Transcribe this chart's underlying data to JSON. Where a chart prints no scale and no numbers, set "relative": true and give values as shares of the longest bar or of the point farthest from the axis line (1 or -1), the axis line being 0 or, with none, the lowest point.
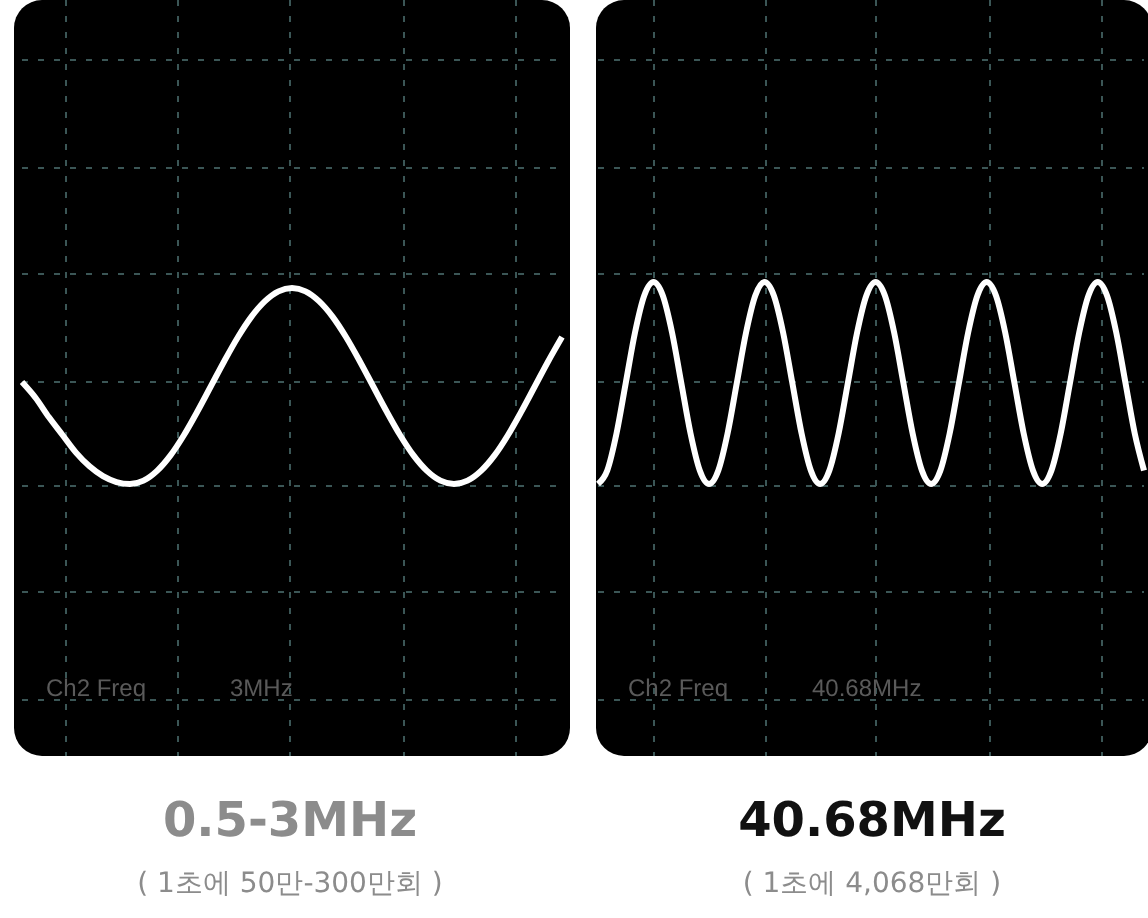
{
  "chart_data": [
    {
      "type": "line",
      "relative": true,
      "grid": true,
      "color": "#ffffff",
      "categories": [
        null,
        null,
        null,
        null,
        null,
        null,
        null,
        null,
        null,
        null,
        null,
        null,
        null,
        null,
        null,
        null,
        null,
        null,
        null,
        null,
        null,
        null,
        null,
        null,
        null,
        null,
        null,
        null,
        null,
        null,
        null,
        null,
        null,
        null,
        null,
        null,
        null,
        null,
        null,
        null,
        null
      ],
      "values": [
        0.52,
        0.44,
        0.34,
        0.25,
        0.16,
        0.09,
        0.04,
        0.01,
        0,
        0.017,
        0.067,
        0.146,
        0.25,
        0.371,
        0.5,
        0.629,
        0.75,
        0.854,
        0.933,
        0.983,
        1,
        0.983,
        0.933,
        0.854,
        0.75,
        0.629,
        0.5,
        0.371,
        0.25,
        0.146,
        0.067,
        0.017,
        0,
        0.017,
        0.067,
        0.146,
        0.25,
        0.371,
        0.5,
        0.629,
        0.75
      ],
      "title": "0.5-3MHz",
      "subtitle": "( 1초에 50만-300만회 )",
      "annotations": [
        "Ch2 Freq",
        "3MHz"
      ]
    },
    {
      "type": "line",
      "relative": true,
      "grid": true,
      "color": "#ffffff",
      "categories": [
        null,
        null,
        null,
        null,
        null,
        null,
        null,
        null,
        null,
        null,
        null,
        null,
        null,
        null,
        null,
        null,
        null,
        null,
        null,
        null,
        null,
        null,
        null,
        null,
        null,
        null,
        null,
        null,
        null,
        null,
        null,
        null,
        null,
        null,
        null,
        null,
        null,
        null,
        null,
        null,
        null,
        null,
        null,
        null,
        null,
        null,
        null,
        null,
        null,
        null,
        null,
        null,
        null,
        null,
        null,
        null,
        null,
        null,
        null,
        null
      ],
      "values": [
        0,
        0.067,
        0.25,
        0.5,
        0.75,
        0.933,
        1,
        0.933,
        0.75,
        0.5,
        0.25,
        0.067,
        0,
        0.067,
        0.25,
        0.5,
        0.75,
        0.933,
        1,
        0.933,
        0.75,
        0.5,
        0.25,
        0.067,
        0,
        0.067,
        0.25,
        0.5,
        0.75,
        0.933,
        1,
        0.933,
        0.75,
        0.5,
        0.25,
        0.067,
        0,
        0.067,
        0.25,
        0.5,
        0.75,
        0.933,
        1,
        0.933,
        0.75,
        0.5,
        0.25,
        0.067,
        0,
        0.067,
        0.25,
        0.5,
        0.75,
        0.933,
        1,
        0.933,
        0.75,
        0.5,
        0.25,
        0.067
      ],
      "title": "40.68MHz",
      "subtitle": "( 1초에 4,068만회 )",
      "annotations": [
        "Ch2 Freq",
        "40.68MHz"
      ]
    }
  ]
}
